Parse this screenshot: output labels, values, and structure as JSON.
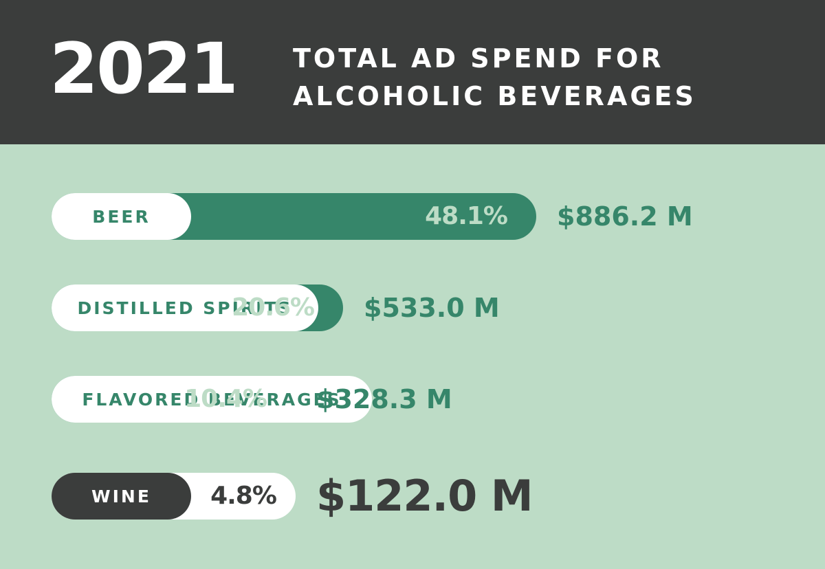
{
  "header": {
    "year": "2021",
    "title_line1": "TOTAL AD SPEND FOR",
    "title_line2": "ALCOHOLIC BEVERAGES"
  },
  "colors": {
    "background": "#bddcc6",
    "header": "#3b3d3c",
    "bar": "#36866a",
    "label_pill": "#ffffff",
    "highlight_pill": "#3b3d3c"
  },
  "chart_data": {
    "type": "bar",
    "orientation": "horizontal",
    "title": "2021 TOTAL AD SPEND FOR ALCOHOLIC BEVERAGES",
    "categories": [
      "BEER",
      "DISTILLED SPIRITS",
      "FLAVORED BEVERAGES",
      "WINE"
    ],
    "percent_labels": [
      "48.1%",
      "20.6%",
      "10.4%",
      "4.8%"
    ],
    "percent_values": [
      48.1,
      20.6,
      10.4,
      4.8
    ],
    "amount_labels": [
      "$886.2 M",
      "$533.0 M",
      "$328.3 M",
      "$122.0 M"
    ],
    "amount_values": [
      886.2,
      533.0,
      328.3,
      122.0
    ],
    "highlighted": "WINE",
    "grid": false,
    "legend": "none"
  }
}
